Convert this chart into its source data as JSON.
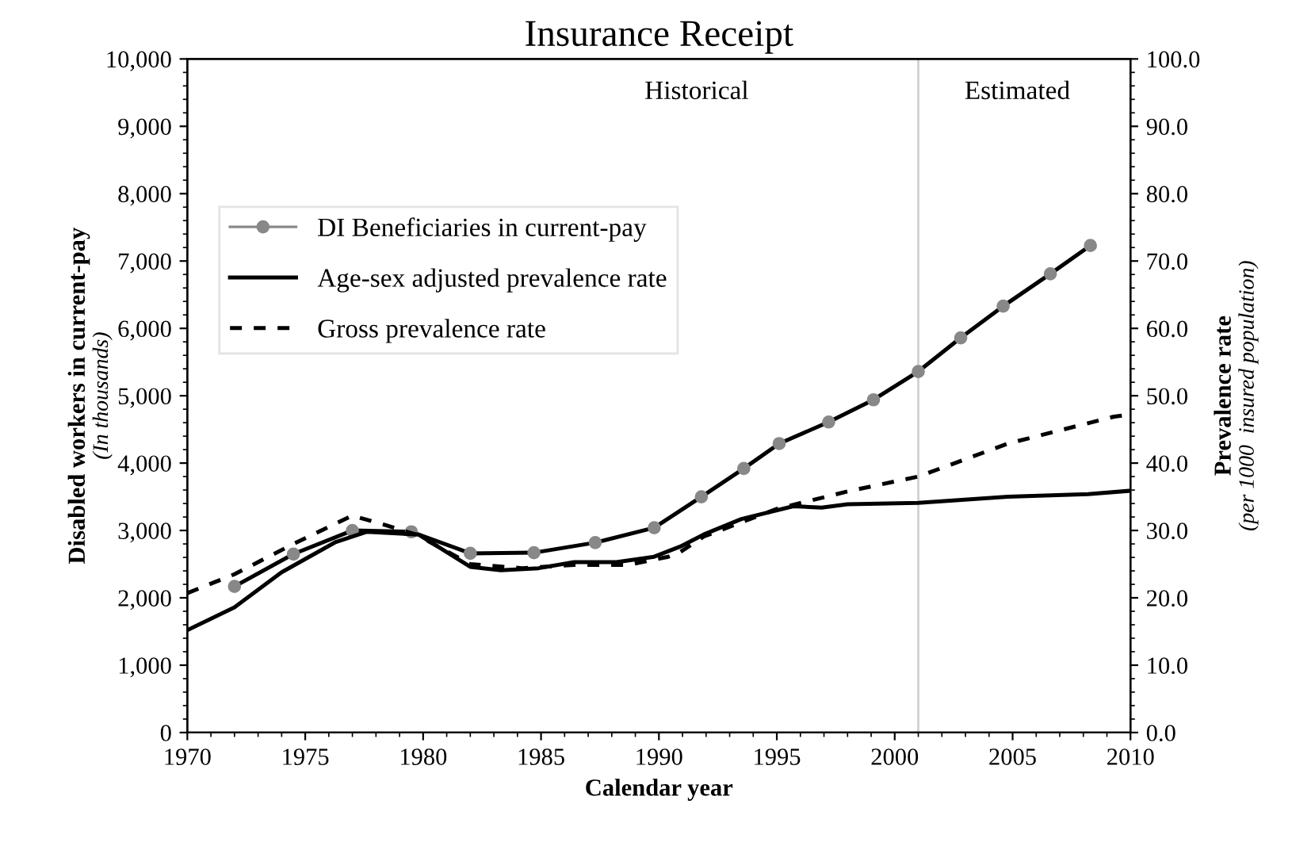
{
  "chart_data": {
    "type": "line",
    "title": "Insurance Receipt",
    "xlabel": "Calendar year",
    "ylabel": "Disabled workers in current-pay\n(In thousands)",
    "y2label": "Prevalence rate\n(per 1000  insured population)",
    "annotations": [
      "Historical",
      "Estimated"
    ],
    "xlim": [
      1970,
      2010
    ],
    "xticks": [
      1970,
      1975,
      1980,
      1985,
      1990,
      1995,
      2000,
      2005,
      2010
    ],
    "ylim": [
      0,
      10000
    ],
    "yticks": [
      {
        "value": 0,
        "label": "0"
      },
      {
        "value": 1000,
        "label": "1,000"
      },
      {
        "value": 2000,
        "label": "2,000"
      },
      {
        "value": 3000,
        "label": "3,000"
      },
      {
        "value": 4000,
        "label": "4,000"
      },
      {
        "value": 5000,
        "label": "5,000"
      },
      {
        "value": 6000,
        "label": "6,000"
      },
      {
        "value": 7000,
        "label": "7,000"
      },
      {
        "value": 8000,
        "label": "8,000"
      },
      {
        "value": 9000,
        "label": "9,000"
      },
      {
        "value": 10000,
        "label": "10,000"
      }
    ],
    "y2lim": [
      0,
      100
    ],
    "y2ticks": [
      {
        "value": 0,
        "label": "0.0"
      },
      {
        "value": 10,
        "label": "10.0"
      },
      {
        "value": 20,
        "label": "20.0"
      },
      {
        "value": 30,
        "label": "30.0"
      },
      {
        "value": 40,
        "label": "40.0"
      },
      {
        "value": 50,
        "label": "50.0"
      },
      {
        "value": 60,
        "label": "60.0"
      },
      {
        "value": 70,
        "label": "70.0"
      },
      {
        "value": 80,
        "label": "80.0"
      },
      {
        "value": 90,
        "label": "90.0"
      },
      {
        "value": 100,
        "label": "100.0"
      }
    ],
    "ref_lines": [
      {
        "axis": "x",
        "value": 2001,
        "color": "#d0d0d0"
      }
    ],
    "grid": false,
    "legend": "upper left",
    "series": [
      {
        "name": "DI Beneficiaries in current-pay",
        "color": "#888888",
        "marker": "circle",
        "line_style": "solid",
        "x": [
          1972,
          1974.5,
          1977,
          1979.5,
          1982,
          1984.7,
          1987.3,
          1989.8,
          1991.8,
          1993.6,
          1995.1,
          1997.2,
          1999.1,
          2001,
          2002.8,
          2004.6,
          2006.6,
          2008.3
        ],
        "values": [
          2170,
          2650,
          3000,
          2980,
          2660,
          2670,
          2820,
          3040,
          3500,
          3920,
          4290,
          4610,
          4940,
          5360,
          5860,
          6330,
          6810,
          7230
        ]
      },
      {
        "name": "Age-sex adjusted prevalence rate",
        "color": "#000000",
        "axis": "y2",
        "marker": "none",
        "line_style": "solid",
        "x": [
          1970,
          1972,
          1974,
          1976.3,
          1977.6,
          1979.8,
          1982,
          1983.3,
          1984.9,
          1986.4,
          1988.2,
          1989.8,
          1990.9,
          1991.9,
          1993.5,
          1995.7,
          1996.9,
          1998,
          2001,
          2004.8,
          2008.2,
          2010
        ],
        "values": [
          15.2,
          18.6,
          23.8,
          28.3,
          29.8,
          29.4,
          24.6,
          24.1,
          24.4,
          25.3,
          25.3,
          26.1,
          27.6,
          29.4,
          31.7,
          33.6,
          33.4,
          33.9,
          34.1,
          35.0,
          35.4,
          35.9
        ]
      },
      {
        "name": "Gross prevalence rate",
        "color": "#000000",
        "axis": "y2",
        "marker": "none",
        "line_style": "dashed",
        "x": [
          1970,
          1972,
          1974.5,
          1977,
          1978.3,
          1979.7,
          1982,
          1984.2,
          1986.4,
          1988.7,
          1990.4,
          1990.9,
          1991.9,
          1995,
          1998,
          2001,
          2004.8,
          2009.3,
          2010
        ],
        "values": [
          20.7,
          23.5,
          28.0,
          32.2,
          30.9,
          29.4,
          25.0,
          24.4,
          24.9,
          24.9,
          26.1,
          26.8,
          29.1,
          33.2,
          35.8,
          38.0,
          42.9,
          46.9,
          47.2
        ]
      }
    ]
  }
}
